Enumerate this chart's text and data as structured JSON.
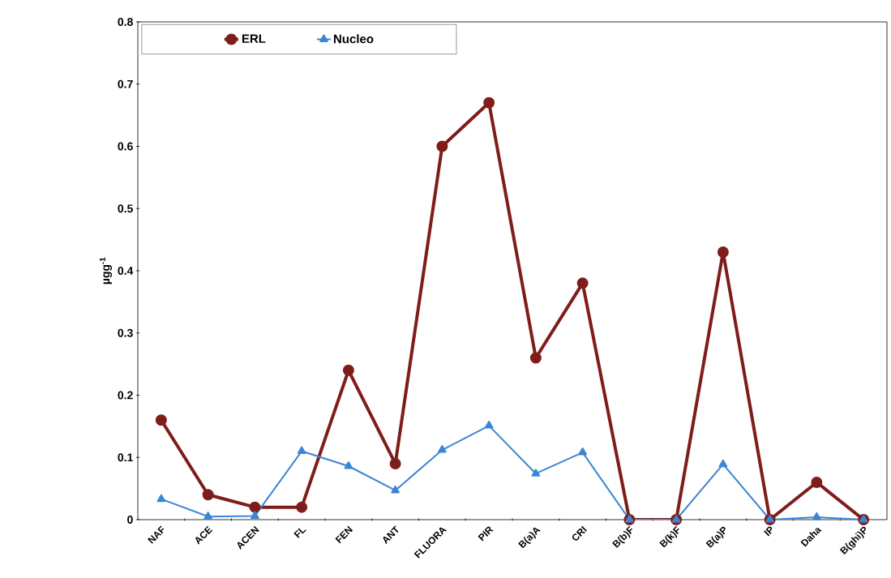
{
  "chart_data": {
    "type": "line",
    "ylabel": "µgg$^{-1}$",
    "categories": [
      "NAF",
      "ACE",
      "ACEN",
      "FL",
      "FEN",
      "ANT",
      "FLUORA",
      "PIR",
      "B(a)A",
      "CRI",
      "B(b)F",
      "B(k)F",
      "B(a)P",
      "IP",
      "Daha",
      "B(ghi)P"
    ],
    "series": [
      {
        "name": "ERL",
        "color": "#7f1d1a",
        "marker": "circle",
        "values": [
          0.16,
          0.04,
          0.02,
          0.02,
          0.24,
          0.09,
          0.6,
          0.67,
          0.26,
          0.38,
          0,
          0,
          0.43,
          0,
          0.06,
          0
        ]
      },
      {
        "name": "Nucleo",
        "color": "#3a86d4",
        "marker": "triangle",
        "values": [
          0.033,
          0.005,
          0.006,
          0.11,
          0.086,
          0.047,
          0.112,
          0.151,
          0.074,
          0.108,
          0,
          0,
          0.089,
          0,
          0.004,
          0
        ]
      }
    ],
    "ylim": [
      0,
      0.8
    ],
    "yticks": [
      0,
      0.1,
      0.2,
      0.3,
      0.4,
      0.5,
      0.6,
      0.7,
      0.8
    ],
    "grid": false,
    "legend": "top left",
    "line_style": "solid"
  }
}
